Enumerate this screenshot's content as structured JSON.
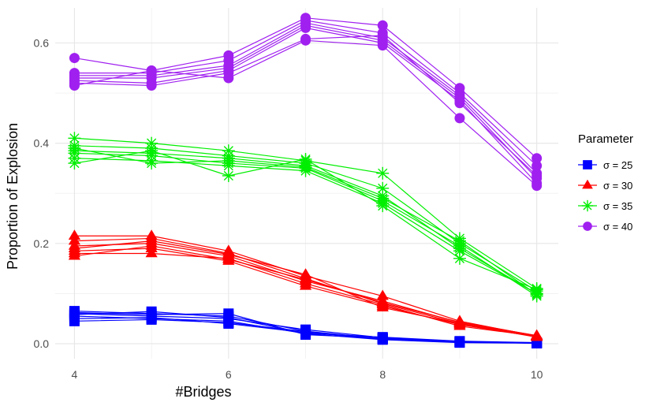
{
  "chart_data": {
    "type": "line",
    "xlabel": "#Bridges",
    "ylabel": "Proportion of Explosion",
    "x_ticks": [
      4,
      6,
      8,
      10
    ],
    "y_ticks": [
      "0.0",
      "0.2",
      "0.4",
      "0.6"
    ],
    "y_tick_values": [
      0.0,
      0.2,
      0.4,
      0.6
    ],
    "xlim": [
      3.75,
      10.28
    ],
    "ylim": [
      -0.03,
      0.67
    ],
    "grid": true,
    "legend": {
      "title": "Parameter",
      "placement": "right",
      "entries": [
        {
          "label": "σ = 25",
          "color": "#0000ff",
          "marker": "square"
        },
        {
          "label": "σ = 30",
          "color": "#ff0000",
          "marker": "triangle"
        },
        {
          "label": "σ = 35",
          "color": "#00ee00",
          "marker": "asterisk"
        },
        {
          "label": "σ = 40",
          "color": "#a020f0",
          "marker": "circle"
        }
      ]
    },
    "x": [
      4,
      5,
      6,
      7,
      8,
      9,
      10
    ],
    "groups": [
      {
        "label_index": 0,
        "color": "#0000ff",
        "marker": "square",
        "runs": [
          [
            0.065,
            0.06,
            0.055,
            0.025,
            0.01,
            0.003,
            0.001
          ],
          [
            0.06,
            0.055,
            0.05,
            0.028,
            0.012,
            0.004,
            0.001
          ],
          [
            0.055,
            0.05,
            0.045,
            0.02,
            0.008,
            0.002,
            0.001
          ],
          [
            0.05,
            0.052,
            0.04,
            0.022,
            0.01,
            0.003,
            0.002
          ],
          [
            0.062,
            0.058,
            0.06,
            0.018,
            0.011,
            0.004,
            0.001
          ],
          [
            0.045,
            0.048,
            0.042,
            0.024,
            0.009,
            0.003,
            0.001
          ],
          [
            0.058,
            0.064,
            0.052,
            0.021,
            0.013,
            0.005,
            0.002
          ]
        ]
      },
      {
        "label_index": 1,
        "color": "#ff0000",
        "marker": "triangle",
        "runs": [
          [
            0.215,
            0.215,
            0.185,
            0.135,
            0.095,
            0.045,
            0.015
          ],
          [
            0.205,
            0.21,
            0.18,
            0.13,
            0.08,
            0.04,
            0.015
          ],
          [
            0.195,
            0.2,
            0.175,
            0.125,
            0.085,
            0.042,
            0.016
          ],
          [
            0.185,
            0.19,
            0.165,
            0.115,
            0.075,
            0.038,
            0.014
          ],
          [
            0.18,
            0.18,
            0.17,
            0.12,
            0.078,
            0.035,
            0.015
          ],
          [
            0.19,
            0.205,
            0.178,
            0.138,
            0.072,
            0.04,
            0.013
          ],
          [
            0.175,
            0.195,
            0.168,
            0.128,
            0.082,
            0.043,
            0.016
          ]
        ]
      },
      {
        "label_index": 2,
        "color": "#00ee00",
        "marker": "asterisk",
        "runs": [
          [
            0.41,
            0.4,
            0.385,
            0.365,
            0.34,
            0.21,
            0.11
          ],
          [
            0.395,
            0.39,
            0.375,
            0.36,
            0.31,
            0.2,
            0.105
          ],
          [
            0.385,
            0.38,
            0.37,
            0.355,
            0.295,
            0.19,
            0.1
          ],
          [
            0.38,
            0.375,
            0.36,
            0.35,
            0.285,
            0.195,
            0.095
          ],
          [
            0.37,
            0.365,
            0.355,
            0.345,
            0.28,
            0.185,
            0.1
          ],
          [
            0.36,
            0.385,
            0.335,
            0.368,
            0.275,
            0.17,
            0.108
          ],
          [
            0.39,
            0.36,
            0.365,
            0.352,
            0.29,
            0.205,
            0.098
          ]
        ]
      },
      {
        "label_index": 3,
        "color": "#a020f0",
        "marker": "circle",
        "runs": [
          [
            0.57,
            0.545,
            0.575,
            0.65,
            0.635,
            0.51,
            0.37
          ],
          [
            0.54,
            0.54,
            0.565,
            0.645,
            0.62,
            0.5,
            0.355
          ],
          [
            0.535,
            0.535,
            0.555,
            0.64,
            0.61,
            0.495,
            0.34
          ],
          [
            0.53,
            0.53,
            0.55,
            0.635,
            0.605,
            0.49,
            0.33
          ],
          [
            0.525,
            0.52,
            0.545,
            0.63,
            0.6,
            0.485,
            0.32
          ],
          [
            0.515,
            0.545,
            0.53,
            0.605,
            0.595,
            0.45,
            0.315
          ],
          [
            0.52,
            0.515,
            0.54,
            0.608,
            0.615,
            0.48,
            0.335
          ]
        ]
      }
    ]
  }
}
